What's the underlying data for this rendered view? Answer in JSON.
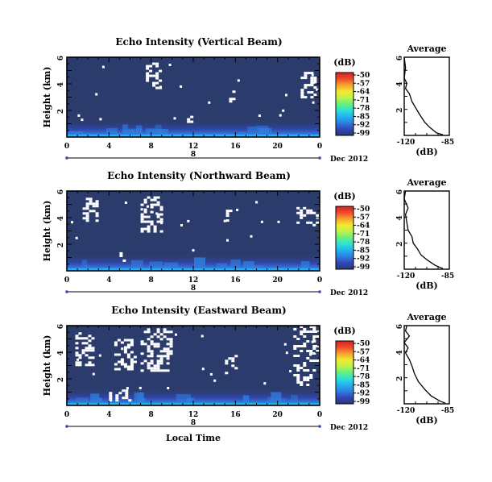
{
  "figure": {
    "xlabel": "Local Time",
    "date_label": "Dec 2012",
    "day_label": "8",
    "average_title": "Average",
    "average_xlabel": "(dB)",
    "colorbar_title": "(dB)"
  },
  "colors": {
    "background_dark": "#2b3c6c",
    "colorbar": [
      "#2a3a72",
      "#3346b8",
      "#2f7fe0",
      "#21b3f0",
      "#2fe0d6",
      "#66f07e",
      "#bff24a",
      "#f2ea30",
      "#f7a12c",
      "#ee4a2a",
      "#d72226"
    ],
    "white_patch": "#ffffff"
  },
  "chart_data": [
    {
      "type": "heatmap",
      "title": "Echo Intensity (Vertical Beam)",
      "ylabel": "Height (km)",
      "x_ticks": [
        "0",
        "4",
        "8",
        "12",
        "16",
        "20",
        "0"
      ],
      "y_ticks": [
        "2",
        "4",
        "6"
      ],
      "xlim": [
        0,
        24
      ],
      "ylim": [
        0,
        6
      ],
      "colorbar": {
        "label": "(dB)",
        "ticks": [
          "-50",
          "-57",
          "-64",
          "-71",
          "-78",
          "-85",
          "-92",
          "-99"
        ],
        "range": [
          -99,
          -50
        ]
      },
      "base_value_db": -99,
      "near_surface_db": -85,
      "white_regions_hours_km": [
        [
          7.5,
          8.8,
          3.6,
          5.6
        ],
        [
          15.4,
          15.8,
          2.7,
          3.5
        ],
        [
          22.2,
          23.6,
          3.0,
          4.9
        ],
        [
          11.4,
          11.9,
          1.0,
          1.6
        ]
      ],
      "average_profile": {
        "title": "Average",
        "xlabel": "(dB)",
        "x_ticks": [
          "-120",
          "-85"
        ],
        "y_ticks": [
          "2",
          "4",
          "6"
        ],
        "xlim": [
          -120,
          -85
        ],
        "ylim": [
          0,
          6
        ],
        "points": [
          [
            -120,
            6.0
          ],
          [
            -119,
            5.2
          ],
          [
            -120,
            4.4
          ],
          [
            -118,
            4.0
          ],
          [
            -119,
            3.6
          ],
          [
            -116,
            3.2
          ],
          [
            -114,
            2.6
          ],
          [
            -111,
            2.1
          ],
          [
            -108,
            1.6
          ],
          [
            -104,
            1.0
          ],
          [
            -100,
            0.6
          ],
          [
            -95,
            0.2
          ],
          [
            -90,
            0.05
          ]
        ]
      }
    },
    {
      "type": "heatmap",
      "title": "Echo Intensity (Northward Beam)",
      "ylabel": "Height (km)",
      "x_ticks": [
        "0",
        "4",
        "8",
        "12",
        "16",
        "20",
        "0"
      ],
      "y_ticks": [
        "2",
        "4",
        "6"
      ],
      "xlim": [
        0,
        24
      ],
      "ylim": [
        0,
        6
      ],
      "colorbar": {
        "label": "(dB)",
        "ticks": [
          "-50",
          "-57",
          "-64",
          "-71",
          "-78",
          "-85",
          "-92",
          "-99"
        ],
        "range": [
          -99,
          -50
        ]
      },
      "base_value_db": -99,
      "near_surface_db": -85,
      "white_regions_hours_km": [
        [
          1.5,
          3.0,
          3.8,
          5.5
        ],
        [
          7.0,
          9.0,
          3.0,
          5.6
        ],
        [
          14.8,
          15.5,
          3.8,
          4.6
        ],
        [
          21.8,
          24.0,
          3.4,
          4.8
        ],
        [
          5.0,
          5.5,
          0.6,
          1.4
        ]
      ],
      "average_profile": {
        "title": "Average",
        "xlabel": "(dB)",
        "x_ticks": [
          "-120",
          "-85"
        ],
        "y_ticks": [
          "2",
          "4",
          "6"
        ],
        "xlim": [
          -120,
          -85
        ],
        "ylim": [
          0,
          6
        ],
        "points": [
          [
            -119,
            6.0
          ],
          [
            -120,
            5.4
          ],
          [
            -117,
            4.7
          ],
          [
            -119,
            4.2
          ],
          [
            -118,
            3.6
          ],
          [
            -117,
            3.0
          ],
          [
            -114,
            2.5
          ],
          [
            -113,
            2.0
          ],
          [
            -110,
            1.6
          ],
          [
            -107,
            1.1
          ],
          [
            -102,
            0.7
          ],
          [
            -96,
            0.3
          ],
          [
            -90,
            0.05
          ]
        ]
      }
    },
    {
      "type": "heatmap",
      "title": "Echo Intensity (Eastward Beam)",
      "ylabel": "Height (km)",
      "x_ticks": [
        "0",
        "4",
        "8",
        "12",
        "16",
        "20",
        "0"
      ],
      "y_ticks": [
        "2",
        "4",
        "6"
      ],
      "xlim": [
        0,
        24
      ],
      "ylim": [
        0,
        6
      ],
      "colorbar": {
        "label": "(dB)",
        "ticks": [
          "-50",
          "-57",
          "-64",
          "-71",
          "-78",
          "-85",
          "-92",
          "-99"
        ],
        "range": [
          -99,
          -50
        ]
      },
      "base_value_db": -99,
      "near_surface_db": -85,
      "white_regions_hours_km": [
        [
          0.8,
          2.4,
          3.0,
          5.5
        ],
        [
          4.5,
          6.5,
          2.6,
          5.0
        ],
        [
          7.0,
          9.8,
          2.6,
          5.8
        ],
        [
          15.0,
          16.0,
          2.5,
          3.8
        ],
        [
          21.5,
          23.8,
          1.5,
          6.0
        ],
        [
          4.0,
          6.0,
          0.4,
          1.2
        ]
      ],
      "average_profile": {
        "title": "Average",
        "xlabel": "(dB)",
        "x_ticks": [
          "-120",
          "-85"
        ],
        "y_ticks": [
          "2",
          "4",
          "6"
        ],
        "xlim": [
          -120,
          -85
        ],
        "ylim": [
          0,
          6
        ],
        "points": [
          [
            -118,
            6.0
          ],
          [
            -119,
            5.6
          ],
          [
            -116,
            5.2
          ],
          [
            -120,
            4.7
          ],
          [
            -117,
            4.3
          ],
          [
            -119,
            3.9
          ],
          [
            -116,
            3.4
          ],
          [
            -114,
            2.9
          ],
          [
            -112,
            2.3
          ],
          [
            -109,
            1.7
          ],
          [
            -104,
            1.1
          ],
          [
            -99,
            0.6
          ],
          [
            -92,
            0.2
          ],
          [
            -88,
            0.05
          ]
        ]
      }
    }
  ]
}
